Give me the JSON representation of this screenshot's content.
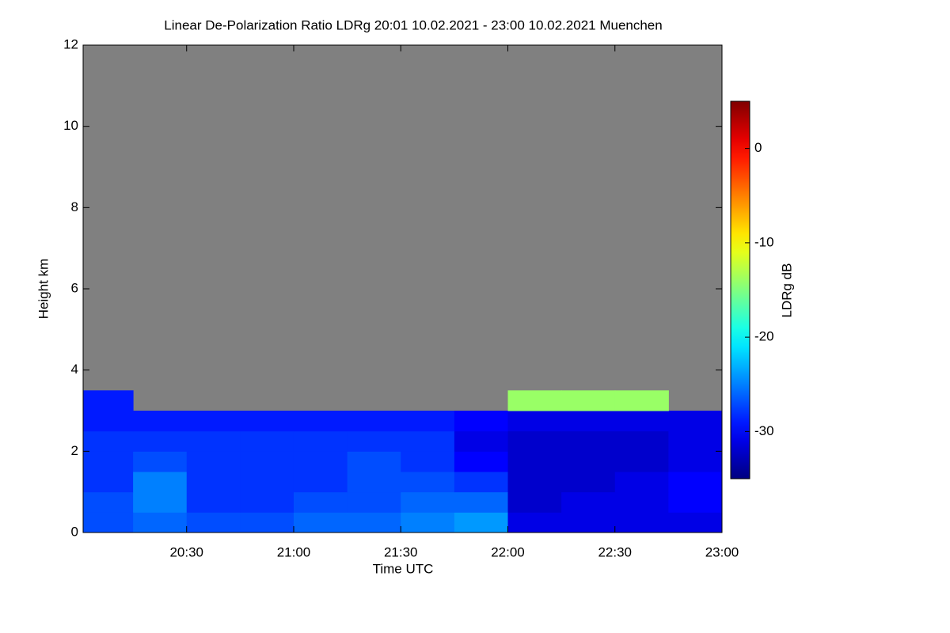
{
  "chart_data": {
    "type": "heatmap",
    "title": "Linear De-Polarization Ratio LDRg   20:01 10.02.2021 - 23:00 10.02.2021 Muenchen",
    "xlabel": "Time UTC",
    "ylabel": "Height km",
    "colorbar_label": "LDRg dB",
    "colormap": "jet",
    "nodata_color": "#808080",
    "xlim": [
      20.0167,
      23.0
    ],
    "xticks": [
      {
        "value": 20.5,
        "label": "20:30"
      },
      {
        "value": 21,
        "label": "21:00"
      },
      {
        "value": 21.5,
        "label": "21:30"
      },
      {
        "value": 22,
        "label": "22:00"
      },
      {
        "value": 22.5,
        "label": "22:30"
      },
      {
        "value": 23,
        "label": "23:00"
      }
    ],
    "ylim": [
      0,
      12
    ],
    "yticks": [
      0,
      2,
      4,
      6,
      8,
      10,
      12
    ],
    "zlim": [
      -35,
      5
    ],
    "zticks": [
      0,
      -10,
      -20,
      -30
    ],
    "x_bins": [
      20.0167,
      20.25,
      20.5,
      20.75,
      21,
      21.25,
      21.5,
      21.75,
      22,
      22.25,
      22.5,
      22.75,
      23
    ],
    "y_bins": [
      0,
      0.5,
      1,
      1.5,
      2,
      2.5,
      3,
      3.5,
      4
    ],
    "z": [
      [
        -27,
        -26,
        -27,
        -27,
        -26,
        -26,
        -25,
        -24,
        -31,
        -31,
        -31,
        -31
      ],
      [
        -27,
        -25,
        -28,
        -28,
        -27,
        -27,
        -26,
        -26,
        -32,
        -31,
        -31,
        -30
      ],
      [
        -28,
        -25,
        -28,
        -28,
        -28,
        -27,
        -27,
        -28,
        -32,
        -32,
        -31,
        -30
      ],
      [
        -28,
        -27,
        -28,
        -28,
        -28,
        -27,
        -28,
        -30,
        -32,
        -32,
        -32,
        -31
      ],
      [
        -28,
        -28,
        -28,
        -28,
        -28,
        -28,
        -28,
        -31,
        -32,
        -32,
        -32,
        -31
      ],
      [
        -29,
        -29,
        -29,
        -29,
        -29,
        -29,
        -29,
        -30,
        -31,
        -31,
        -31,
        -31
      ],
      [
        -29,
        null,
        null,
        null,
        null,
        null,
        null,
        null,
        -14,
        -14,
        -14,
        null
      ],
      [
        null,
        null,
        null,
        null,
        null,
        null,
        null,
        null,
        null,
        null,
        null,
        null
      ]
    ]
  }
}
